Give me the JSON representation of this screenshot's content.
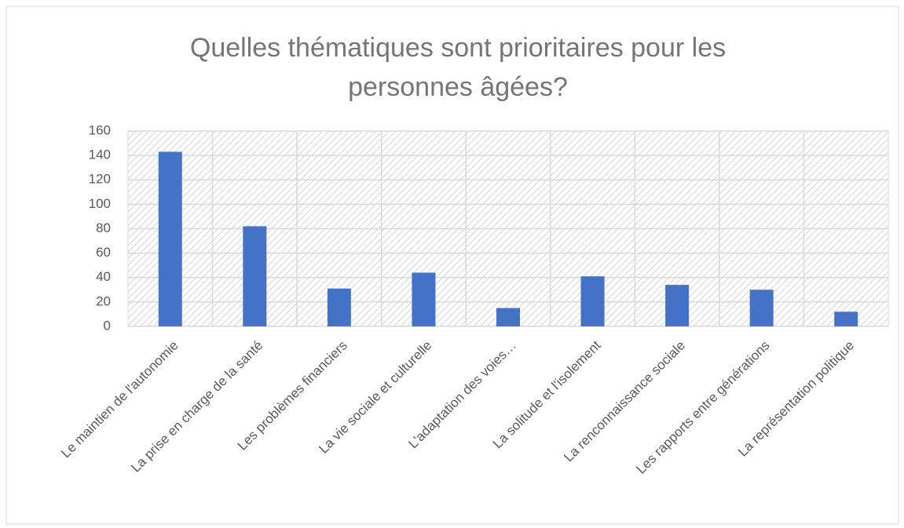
{
  "chart_data": {
    "type": "bar",
    "title": "Quelles thématiques sont prioritaires pour les personnes âgées?",
    "categories": [
      "Le maintien de l'autonomie",
      "La prise en charge de la santé",
      "Les problèmes financiers",
      "La vie sociale et culturelle",
      "L'adaptation des voies…",
      "La solitude et l'isolement",
      "La renconnaissance sociale",
      "Les rapports entre générations",
      "La représentation politique"
    ],
    "values": [
      143,
      82,
      31,
      44,
      15,
      41,
      34,
      30,
      12
    ],
    "color": "#4472c4",
    "ylim": [
      0,
      160
    ],
    "yticks": [
      0,
      20,
      40,
      60,
      80,
      100,
      120,
      140,
      160
    ],
    "grid": true
  }
}
